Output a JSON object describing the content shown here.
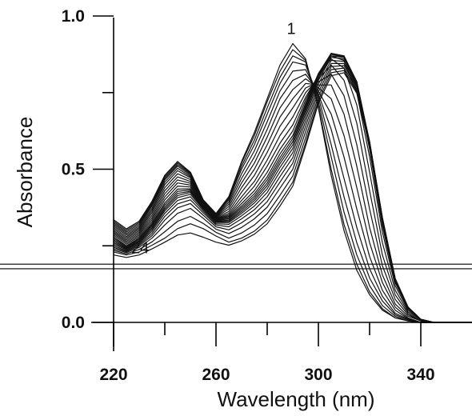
{
  "chart_data": {
    "type": "line",
    "title": "",
    "xlabel": "Wavelength (nm)",
    "ylabel": "Absorbance",
    "xlim": [
      220,
      360
    ],
    "ylim": [
      0.0,
      1.0
    ],
    "x_tick_labels": [
      "220",
      "260",
      "300",
      "340"
    ],
    "x_minor_ticks": [
      240,
      280,
      320
    ],
    "y_tick_labels": [
      "0.0",
      "0.5",
      "1.0"
    ],
    "y_tick_values": [
      0.0,
      0.5,
      1.0
    ],
    "y_minor_ticks": [
      0.25,
      0.75
    ],
    "grid": false,
    "legend": "none",
    "annotations": [
      {
        "text": "1",
        "x": 290,
        "y": 0.92
      },
      {
        "text": "24",
        "x": 231,
        "y": 0.205
      }
    ],
    "reference_lines_y": [
      0.19,
      0.175
    ],
    "x": [
      220,
      225,
      230,
      235,
      240,
      245,
      250,
      255,
      260,
      265,
      270,
      275,
      280,
      285,
      290,
      295,
      300,
      305,
      310,
      315,
      320,
      325,
      330,
      335,
      340,
      345,
      350,
      355,
      360
    ],
    "series": [
      {
        "values": [
          0.335,
          0.305,
          0.33,
          0.395,
          0.48,
          0.525,
          0.49,
          0.4,
          0.355,
          0.41,
          0.525,
          0.62,
          0.73,
          0.84,
          0.91,
          0.86,
          0.7,
          0.48,
          0.3,
          0.17,
          0.09,
          0.04,
          0.015,
          0.005,
          0.0,
          0.0,
          0.0,
          0.0,
          0.0
        ]
      },
      {
        "values": [
          0.335,
          0.305,
          0.33,
          0.395,
          0.48,
          0.525,
          0.49,
          0.4,
          0.355,
          0.41,
          0.52,
          0.61,
          0.72,
          0.82,
          0.89,
          0.855,
          0.705,
          0.5,
          0.32,
          0.19,
          0.1,
          0.045,
          0.015,
          0.005,
          0.0,
          0.0,
          0.0,
          0.0,
          0.0
        ]
      },
      {
        "values": [
          0.33,
          0.3,
          0.325,
          0.39,
          0.475,
          0.52,
          0.487,
          0.398,
          0.354,
          0.405,
          0.51,
          0.595,
          0.7,
          0.8,
          0.87,
          0.85,
          0.72,
          0.54,
          0.36,
          0.22,
          0.12,
          0.055,
          0.02,
          0.005,
          0.0,
          0.0,
          0.0,
          0.0,
          0.0
        ]
      },
      {
        "values": [
          0.325,
          0.295,
          0.32,
          0.385,
          0.47,
          0.515,
          0.484,
          0.396,
          0.352,
          0.4,
          0.5,
          0.58,
          0.68,
          0.78,
          0.85,
          0.84,
          0.735,
          0.58,
          0.41,
          0.26,
          0.145,
          0.07,
          0.025,
          0.008,
          0.0,
          0.0,
          0.0,
          0.0,
          0.0
        ]
      },
      {
        "values": [
          0.32,
          0.29,
          0.315,
          0.38,
          0.465,
          0.51,
          0.48,
          0.394,
          0.35,
          0.393,
          0.485,
          0.56,
          0.655,
          0.755,
          0.82,
          0.825,
          0.745,
          0.63,
          0.47,
          0.31,
          0.175,
          0.085,
          0.03,
          0.01,
          0.0,
          0.0,
          0.0,
          0.0,
          0.0
        ]
      },
      {
        "values": [
          0.315,
          0.285,
          0.31,
          0.372,
          0.458,
          0.503,
          0.476,
          0.392,
          0.348,
          0.386,
          0.47,
          0.54,
          0.63,
          0.73,
          0.79,
          0.81,
          0.755,
          0.68,
          0.54,
          0.37,
          0.215,
          0.105,
          0.04,
          0.012,
          0.0,
          0.0,
          0.0,
          0.0,
          0.0
        ]
      },
      {
        "values": [
          0.31,
          0.28,
          0.305,
          0.365,
          0.45,
          0.495,
          0.472,
          0.39,
          0.346,
          0.378,
          0.455,
          0.52,
          0.605,
          0.7,
          0.76,
          0.795,
          0.765,
          0.73,
          0.61,
          0.44,
          0.26,
          0.13,
          0.05,
          0.015,
          0.0,
          0.0,
          0.0,
          0.0,
          0.0
        ]
      },
      {
        "values": [
          0.305,
          0.275,
          0.3,
          0.358,
          0.44,
          0.485,
          0.466,
          0.388,
          0.344,
          0.37,
          0.44,
          0.5,
          0.58,
          0.67,
          0.73,
          0.78,
          0.775,
          0.775,
          0.68,
          0.51,
          0.31,
          0.155,
          0.06,
          0.02,
          0.005,
          0.0,
          0.0,
          0.0,
          0.0
        ]
      },
      {
        "values": [
          0.3,
          0.27,
          0.295,
          0.35,
          0.43,
          0.475,
          0.46,
          0.386,
          0.342,
          0.362,
          0.425,
          0.48,
          0.555,
          0.64,
          0.7,
          0.765,
          0.785,
          0.81,
          0.74,
          0.58,
          0.37,
          0.185,
          0.075,
          0.025,
          0.005,
          0.0,
          0.0,
          0.0,
          0.0
        ]
      },
      {
        "values": [
          0.295,
          0.265,
          0.29,
          0.342,
          0.42,
          0.465,
          0.454,
          0.384,
          0.34,
          0.355,
          0.41,
          0.46,
          0.53,
          0.61,
          0.67,
          0.75,
          0.795,
          0.84,
          0.79,
          0.65,
          0.43,
          0.22,
          0.09,
          0.03,
          0.005,
          0.0,
          0.0,
          0.0,
          0.0
        ]
      },
      {
        "values": [
          0.29,
          0.26,
          0.285,
          0.335,
          0.41,
          0.455,
          0.448,
          0.382,
          0.338,
          0.35,
          0.398,
          0.445,
          0.51,
          0.585,
          0.645,
          0.735,
          0.805,
          0.86,
          0.83,
          0.71,
          0.49,
          0.26,
          0.105,
          0.035,
          0.008,
          0.0,
          0.0,
          0.0,
          0.0
        ]
      },
      {
        "values": [
          0.285,
          0.255,
          0.28,
          0.328,
          0.4,
          0.445,
          0.442,
          0.38,
          0.336,
          0.346,
          0.388,
          0.43,
          0.49,
          0.565,
          0.625,
          0.725,
          0.81,
          0.87,
          0.855,
          0.75,
          0.54,
          0.295,
          0.12,
          0.04,
          0.01,
          0.0,
          0.0,
          0.0,
          0.0
        ]
      },
      {
        "values": [
          0.28,
          0.25,
          0.275,
          0.322,
          0.39,
          0.435,
          0.436,
          0.378,
          0.334,
          0.342,
          0.38,
          0.42,
          0.475,
          0.55,
          0.61,
          0.715,
          0.812,
          0.875,
          0.865,
          0.77,
          0.565,
          0.315,
          0.13,
          0.045,
          0.01,
          0.0,
          0.0,
          0.0,
          0.0
        ]
      },
      {
        "values": [
          0.275,
          0.248,
          0.272,
          0.318,
          0.383,
          0.428,
          0.432,
          0.376,
          0.332,
          0.338,
          0.374,
          0.412,
          0.465,
          0.538,
          0.6,
          0.708,
          0.812,
          0.878,
          0.87,
          0.78,
          0.575,
          0.325,
          0.135,
          0.045,
          0.01,
          0.0,
          0.0,
          0.0,
          0.0
        ]
      },
      {
        "values": [
          0.27,
          0.245,
          0.268,
          0.313,
          0.376,
          0.421,
          0.428,
          0.374,
          0.33,
          0.334,
          0.368,
          0.405,
          0.455,
          0.528,
          0.59,
          0.7,
          0.81,
          0.878,
          0.87,
          0.785,
          0.58,
          0.33,
          0.138,
          0.048,
          0.01,
          0.0,
          0.0,
          0.0,
          0.0
        ]
      },
      {
        "values": [
          0.265,
          0.242,
          0.265,
          0.308,
          0.37,
          0.414,
          0.424,
          0.372,
          0.328,
          0.33,
          0.362,
          0.398,
          0.446,
          0.518,
          0.58,
          0.692,
          0.805,
          0.875,
          0.868,
          0.785,
          0.585,
          0.335,
          0.14,
          0.048,
          0.01,
          0.0,
          0.0,
          0.0,
          0.0
        ]
      },
      {
        "values": [
          0.26,
          0.24,
          0.262,
          0.303,
          0.364,
          0.407,
          0.418,
          0.369,
          0.326,
          0.326,
          0.356,
          0.39,
          0.436,
          0.506,
          0.568,
          0.682,
          0.798,
          0.87,
          0.865,
          0.785,
          0.588,
          0.338,
          0.142,
          0.05,
          0.01,
          0.0,
          0.0,
          0.0,
          0.0
        ]
      },
      {
        "values": [
          0.255,
          0.237,
          0.258,
          0.297,
          0.356,
          0.398,
          0.41,
          0.364,
          0.322,
          0.32,
          0.348,
          0.38,
          0.424,
          0.492,
          0.554,
          0.67,
          0.79,
          0.865,
          0.86,
          0.782,
          0.59,
          0.34,
          0.143,
          0.05,
          0.01,
          0.0,
          0.0,
          0.0,
          0.0
        ]
      },
      {
        "values": [
          0.25,
          0.234,
          0.254,
          0.29,
          0.346,
          0.387,
          0.4,
          0.358,
          0.318,
          0.312,
          0.338,
          0.368,
          0.41,
          0.476,
          0.538,
          0.656,
          0.778,
          0.855,
          0.852,
          0.778,
          0.59,
          0.342,
          0.143,
          0.05,
          0.01,
          0.0,
          0.0,
          0.0,
          0.0
        ]
      },
      {
        "values": [
          0.245,
          0.231,
          0.25,
          0.283,
          0.334,
          0.374,
          0.388,
          0.35,
          0.312,
          0.302,
          0.325,
          0.354,
          0.394,
          0.458,
          0.52,
          0.64,
          0.765,
          0.845,
          0.845,
          0.772,
          0.588,
          0.342,
          0.143,
          0.05,
          0.01,
          0.0,
          0.0,
          0.0,
          0.0
        ]
      },
      {
        "values": [
          0.24,
          0.228,
          0.245,
          0.275,
          0.318,
          0.356,
          0.372,
          0.34,
          0.304,
          0.29,
          0.31,
          0.338,
          0.376,
          0.438,
          0.5,
          0.622,
          0.752,
          0.835,
          0.838,
          0.766,
          0.585,
          0.34,
          0.142,
          0.05,
          0.01,
          0.0,
          0.0,
          0.0,
          0.0
        ]
      },
      {
        "values": [
          0.235,
          0.224,
          0.238,
          0.263,
          0.296,
          0.33,
          0.346,
          0.323,
          0.294,
          0.275,
          0.292,
          0.318,
          0.355,
          0.415,
          0.478,
          0.602,
          0.738,
          0.825,
          0.83,
          0.76,
          0.582,
          0.338,
          0.142,
          0.05,
          0.01,
          0.0,
          0.0,
          0.0,
          0.0
        ]
      },
      {
        "values": [
          0.23,
          0.22,
          0.23,
          0.252,
          0.275,
          0.306,
          0.322,
          0.306,
          0.282,
          0.262,
          0.275,
          0.298,
          0.334,
          0.394,
          0.458,
          0.585,
          0.725,
          0.815,
          0.822,
          0.754,
          0.578,
          0.336,
          0.141,
          0.05,
          0.01,
          0.0,
          0.0,
          0.0,
          0.0
        ]
      },
      {
        "values": [
          0.22,
          0.212,
          0.22,
          0.24,
          0.262,
          0.285,
          0.292,
          0.278,
          0.262,
          0.252,
          0.266,
          0.288,
          0.322,
          0.38,
          0.445,
          0.575,
          0.715,
          0.805,
          0.815,
          0.748,
          0.575,
          0.334,
          0.14,
          0.05,
          0.01,
          0.0,
          0.0,
          0.0,
          0.0
        ]
      }
    ]
  }
}
